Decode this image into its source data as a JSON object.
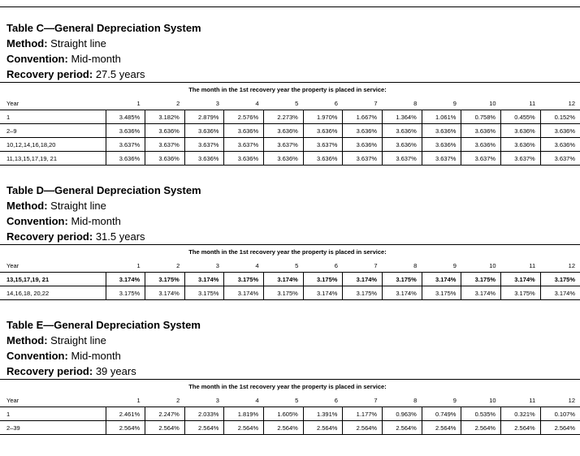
{
  "sections": [
    {
      "title": "Table C—General Depreciation System",
      "method_label": "Method:",
      "method": "Straight line",
      "convention_label": "Convention:",
      "convention": "Mid-month",
      "recovery_label": "Recovery period:",
      "recovery": "27.5 years",
      "caption": "The month in the 1st recovery year the property is placed in service:",
      "columns": [
        "Year",
        "1",
        "2",
        "3",
        "4",
        "5",
        "6",
        "7",
        "8",
        "9",
        "10",
        "11",
        "12"
      ],
      "rows": [
        [
          "1",
          "3.485%",
          "3.182%",
          "2.879%",
          "2.576%",
          "2.273%",
          "1.970%",
          "1.667%",
          "1.364%",
          "1.061%",
          "0.758%",
          "0.455%",
          "0.152%"
        ],
        [
          "2–9",
          "3.636%",
          "3.636%",
          "3.636%",
          "3.636%",
          "3.636%",
          "3.636%",
          "3.636%",
          "3.636%",
          "3.636%",
          "3.636%",
          "3.636%",
          "3.636%"
        ],
        [
          "10,12,14,16,18,20",
          "3.637%",
          "3.637%",
          "3.637%",
          "3.637%",
          "3.637%",
          "3.637%",
          "3.636%",
          "3.636%",
          "3.636%",
          "3.636%",
          "3.636%",
          "3.636%"
        ],
        [
          "11,13,15,17,19, 21",
          "3.636%",
          "3.636%",
          "3.636%",
          "3.636%",
          "3.636%",
          "3.636%",
          "3.637%",
          "3.637%",
          "3.637%",
          "3.637%",
          "3.637%",
          "3.637%"
        ]
      ]
    },
    {
      "title": "Table D—General Depreciation System",
      "method_label": "Method:",
      "method": "Straight line",
      "convention_label": "Convention:",
      "convention": "Mid-month",
      "recovery_label": "Recovery period:",
      "recovery": "31.5 years",
      "caption": "The month in the 1st recovery year the property is placed in service:",
      "columns": [
        "Year",
        "1",
        "2",
        "3",
        "4",
        "5",
        "6",
        "7",
        "8",
        "9",
        "10",
        "11",
        "12"
      ],
      "rows": [
        [
          "13,15,17,19, 21",
          "3.174%",
          "3.175%",
          "3.174%",
          "3.175%",
          "3.174%",
          "3.175%",
          "3.174%",
          "3.175%",
          "3.174%",
          "3.175%",
          "3.174%",
          "3.175%"
        ],
        [
          "14,16,18, 20,22",
          "3.175%",
          "3.174%",
          "3.175%",
          "3.174%",
          "3.175%",
          "3.174%",
          "3.175%",
          "3.174%",
          "3.175%",
          "3.174%",
          "3.175%",
          "3.174%"
        ]
      ]
    },
    {
      "title": "Table E—General Depreciation System",
      "method_label": "Method:",
      "method": "Straight line",
      "convention_label": "Convention:",
      "convention": "Mid-month",
      "recovery_label": "Recovery period:",
      "recovery": "39 years",
      "caption": "The month in the 1st recovery year the property is placed in service:",
      "columns": [
        "Year",
        "1",
        "2",
        "3",
        "4",
        "5",
        "6",
        "7",
        "8",
        "9",
        "10",
        "11",
        "12"
      ],
      "rows": [
        [
          "1",
          "2.461%",
          "2.247%",
          "2.033%",
          "1.819%",
          "1.605%",
          "1.391%",
          "1.177%",
          "0.963%",
          "0.749%",
          "0.535%",
          "0.321%",
          "0.107%"
        ],
        [
          "2–39",
          "2.564%",
          "2.564%",
          "2.564%",
          "2.564%",
          "2.564%",
          "2.564%",
          "2.564%",
          "2.564%",
          "2.564%",
          "2.564%",
          "2.564%",
          "2.564%"
        ]
      ]
    }
  ]
}
